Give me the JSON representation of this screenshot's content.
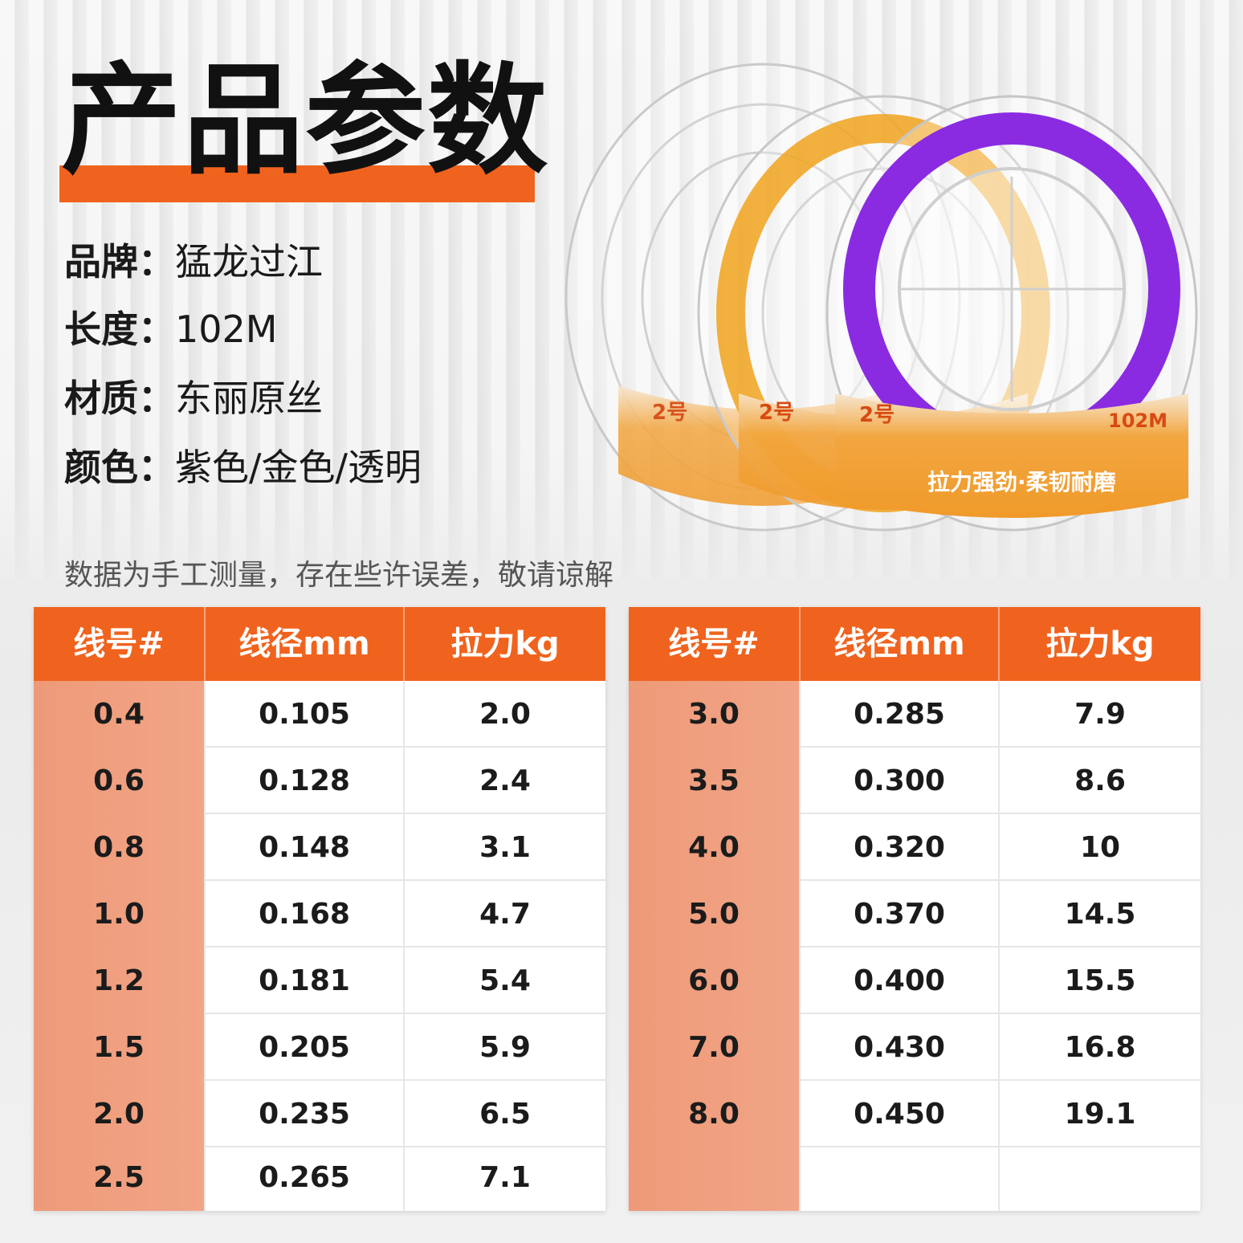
{
  "page_title": "产品参数",
  "specs": [
    {
      "label": "品牌：",
      "value": "猛龙过江"
    },
    {
      "label": "长度：",
      "value": "102M"
    },
    {
      "label": "材质：",
      "value": "东丽原丝"
    },
    {
      "label": "颜色：",
      "value": "紫色/金色/透明"
    }
  ],
  "note": "数据为手工测量，存在些许误差，敬请谅解",
  "spool_labels": {
    "number": "2号",
    "length": "102M",
    "slogan": "拉力强劲·柔韧耐磨"
  },
  "colors": {
    "accent": "#f0631e",
    "first_column": "#ef9f7f",
    "purple": "#8a2be2",
    "gold": "#f0a21c"
  },
  "table_left": {
    "headers": [
      "线号#",
      "线径mm",
      "拉力kg"
    ],
    "rows": [
      [
        "0.4",
        "0.105",
        "2.0"
      ],
      [
        "0.6",
        "0.128",
        "2.4"
      ],
      [
        "0.8",
        "0.148",
        "3.1"
      ],
      [
        "1.0",
        "0.168",
        "4.7"
      ],
      [
        "1.2",
        "0.181",
        "5.4"
      ],
      [
        "1.5",
        "0.205",
        "5.9"
      ],
      [
        "2.0",
        "0.235",
        "6.5"
      ],
      [
        "2.5",
        "0.265",
        "7.1"
      ]
    ]
  },
  "table_right": {
    "headers": [
      "线号#",
      "线径mm",
      "拉力kg"
    ],
    "rows": [
      [
        "3.0",
        "0.285",
        "7.9"
      ],
      [
        "3.5",
        "0.300",
        "8.6"
      ],
      [
        "4.0",
        "0.320",
        "10"
      ],
      [
        "5.0",
        "0.370",
        "14.5"
      ],
      [
        "6.0",
        "0.400",
        "15.5"
      ],
      [
        "7.0",
        "0.430",
        "16.8"
      ],
      [
        "8.0",
        "0.450",
        "19.1"
      ],
      [
        "",
        "",
        ""
      ]
    ]
  }
}
